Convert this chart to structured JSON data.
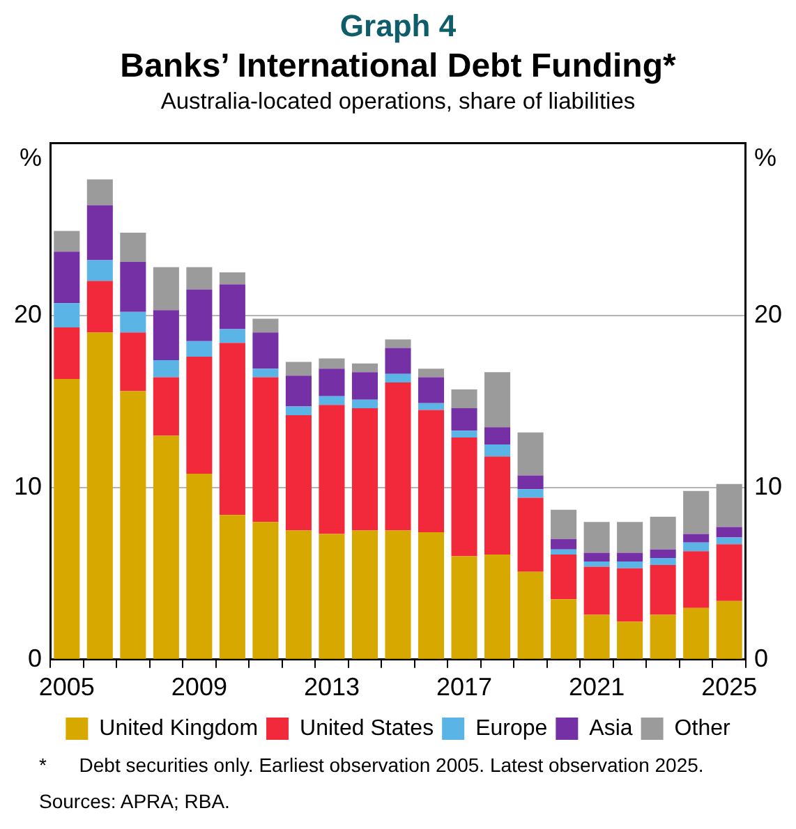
{
  "chart_data": {
    "type": "bar",
    "stacked": true,
    "title": "Banks’ International Debt Funding*",
    "subtitle": "Australia-located operations, share of liabilities",
    "ylabel": "%",
    "y2label": "%",
    "categories": [
      "2005",
      null,
      null,
      null,
      "2009",
      null,
      null,
      null,
      "2013",
      null,
      null,
      null,
      "2017",
      null,
      null,
      null,
      "2021",
      null,
      null,
      null,
      "2025"
    ],
    "series": [
      {
        "name": "United Kingdom",
        "color": "#d7a900",
        "values": [
          16.3,
          19.0,
          15.6,
          13.0,
          10.8,
          8.4,
          8.0,
          7.5,
          7.3,
          7.5,
          7.5,
          7.4,
          6.0,
          6.1,
          5.1,
          3.5,
          2.6,
          2.2,
          2.6,
          3.0,
          3.4
        ]
      },
      {
        "name": "United States",
        "color": "#f2293a",
        "values": [
          3.0,
          3.0,
          3.4,
          3.4,
          6.8,
          10.0,
          8.4,
          6.7,
          7.5,
          7.1,
          8.6,
          7.1,
          6.9,
          5.7,
          4.3,
          2.6,
          2.8,
          3.1,
          2.9,
          3.3,
          3.3
        ]
      },
      {
        "name": "Europe",
        "color": "#5ab4e5",
        "values": [
          1.4,
          1.2,
          1.2,
          1.0,
          0.9,
          0.8,
          0.5,
          0.5,
          0.5,
          0.5,
          0.5,
          0.4,
          0.4,
          0.7,
          0.5,
          0.3,
          0.3,
          0.4,
          0.4,
          0.5,
          0.4
        ]
      },
      {
        "name": "Asia",
        "color": "#7630a5",
        "values": [
          3.0,
          3.2,
          2.9,
          2.9,
          3.0,
          2.6,
          2.1,
          1.8,
          1.6,
          1.6,
          1.5,
          1.5,
          1.3,
          1.0,
          0.8,
          0.6,
          0.5,
          0.5,
          0.5,
          0.5,
          0.6
        ]
      },
      {
        "name": "Other",
        "color": "#9b9b9b",
        "values": [
          1.2,
          1.5,
          1.7,
          2.5,
          1.3,
          0.7,
          0.8,
          0.8,
          0.6,
          0.5,
          0.5,
          0.5,
          1.1,
          3.2,
          2.5,
          1.7,
          1.8,
          1.8,
          1.9,
          2.5,
          2.5
        ]
      }
    ],
    "ylim": [
      0,
      30
    ],
    "yticks": [
      0,
      10,
      20,
      {
        "value": 30,
        "label": null
      }
    ],
    "y2lim": [
      0,
      30
    ],
    "y2ticks": [
      0,
      10,
      20
    ],
    "grid": "y",
    "legend": "bottom",
    "annotations": [
      "Graph 4",
      "*      Debt securities only. Earliest observation 2005. Latest observation 2025.",
      "Sources: APRA; RBA."
    ]
  }
}
